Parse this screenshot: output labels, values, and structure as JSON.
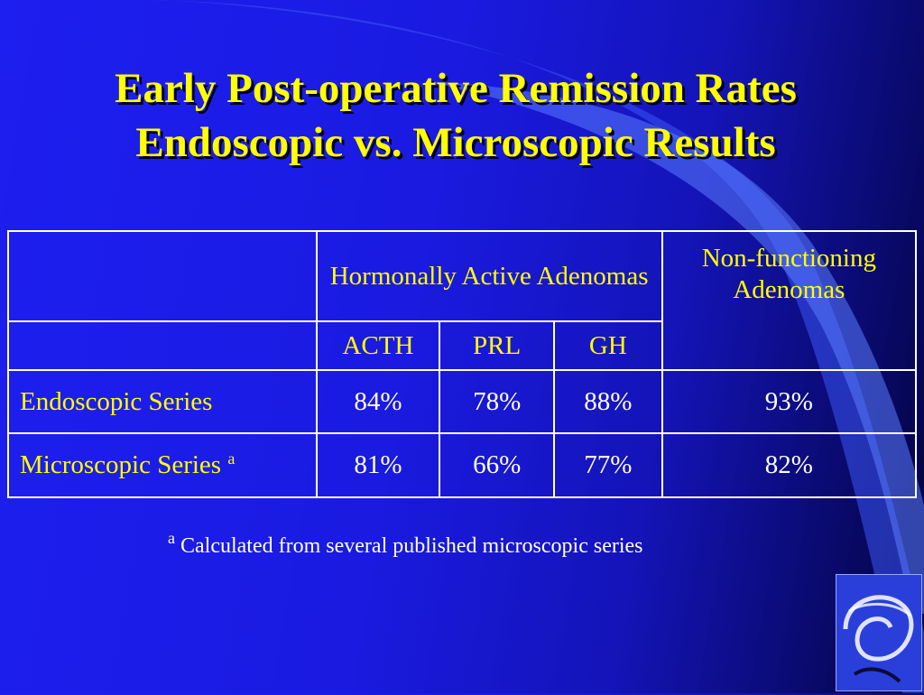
{
  "slide": {
    "title_line1": "Early Post-operative Remission Rates",
    "title_line2": "Endoscopic vs. Microscopic Results"
  },
  "table": {
    "group_headers": {
      "hormonally_active": "Hormonally Active Adenomas",
      "non_functioning": "Non-functioning Adenomas"
    },
    "sub_headers": [
      "ACTH",
      "PRL",
      "GH"
    ],
    "rows": [
      {
        "label": "Endoscopic Series",
        "marker": "",
        "acth": "84%",
        "prl": "78%",
        "gh": "88%",
        "non_functioning": "93%"
      },
      {
        "label": "Microscopic Series",
        "marker": "a",
        "acth": "81%",
        "prl": "66%",
        "gh": "77%",
        "non_functioning": "82%"
      }
    ]
  },
  "footnote": {
    "marker": "a",
    "text": "Calculated from several published microscopic series"
  },
  "colors": {
    "background": "#1a1ae0",
    "accent_text": "#ffff00",
    "value_text": "#ffffff",
    "table_border": "#ffffff"
  }
}
